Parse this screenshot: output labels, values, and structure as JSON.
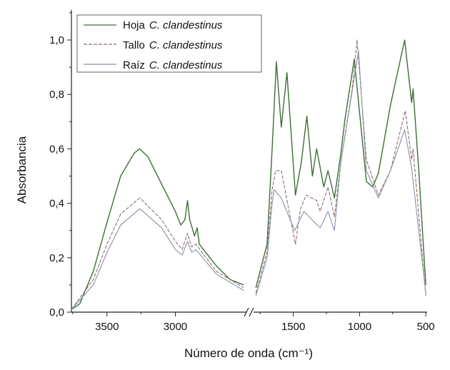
{
  "chart_data": {
    "type": "line",
    "title": "",
    "xlabel": "Número de onda (cm⁻¹)",
    "ylabel": "Absorbancia",
    "ylim": [
      0,
      1.1
    ],
    "broken_axis": true,
    "segments": [
      {
        "xlim": [
          3760,
          2480
        ],
        "ticks": [
          3500,
          3000
        ],
        "tick_labels": [
          "3500",
          "3000"
        ]
      },
      {
        "xlim": [
          1800,
          490
        ],
        "ticks": [
          1500,
          1000,
          500
        ],
        "tick_labels": [
          "1500",
          "1000",
          "500"
        ]
      }
    ],
    "yticks": [
      0,
      0.2,
      0.4,
      0.6,
      0.8,
      1.0
    ],
    "ytick_labels": [
      "0,0",
      "0,2",
      "0,4",
      "0,6",
      "0,8",
      "1,0"
    ],
    "legend": {
      "placement": "top-left"
    },
    "series": [
      {
        "name": "Hoja",
        "name_italic": "C. clandestinus",
        "color": "#3f6e37",
        "dashed": false,
        "segments": [
          [
            [
              3760,
              0.01
            ],
            [
              3700,
              0.03
            ],
            [
              3600,
              0.15
            ],
            [
              3500,
              0.33
            ],
            [
              3400,
              0.5
            ],
            [
              3300,
              0.585
            ],
            [
              3260,
              0.6
            ],
            [
              3200,
              0.57
            ],
            [
              3100,
              0.47
            ],
            [
              3000,
              0.37
            ],
            [
              2960,
              0.32
            ],
            [
              2930,
              0.34
            ],
            [
              2911,
              0.41
            ],
            [
              2895,
              0.34
            ],
            [
              2860,
              0.28
            ],
            [
              2840,
              0.31
            ],
            [
              2825,
              0.25
            ],
            [
              2700,
              0.17
            ],
            [
              2600,
              0.12
            ],
            [
              2500,
              0.1
            ]
          ],
          [
            [
              1783,
              0.09
            ],
            [
              1698,
              0.25
            ],
            [
              1660,
              0.6
            ],
            [
              1628,
              0.92
            ],
            [
              1591,
              0.68
            ],
            [
              1548,
              0.88
            ],
            [
              1484,
              0.43
            ],
            [
              1440,
              0.55
            ],
            [
              1398,
              0.72
            ],
            [
              1356,
              0.5
            ],
            [
              1324,
              0.6
            ],
            [
              1270,
              0.46
            ],
            [
              1238,
              0.52
            ],
            [
              1190,
              0.42
            ],
            [
              1142,
              0.58
            ],
            [
              1110,
              0.71
            ],
            [
              1040,
              0.93
            ],
            [
              949,
              0.48
            ],
            [
              901,
              0.46
            ],
            [
              858,
              0.51
            ],
            [
              767,
              0.76
            ],
            [
              660,
              1.0
            ],
            [
              607,
              0.77
            ],
            [
              596,
              0.82
            ],
            [
              553,
              0.52
            ],
            [
              500,
              0.1
            ]
          ]
        ]
      },
      {
        "name": "Tallo",
        "name_italic": "C. clandestinus",
        "color": "#8d6f70",
        "dashed": true,
        "segments": [
          [
            [
              3760,
              0.01
            ],
            [
              3600,
              0.12
            ],
            [
              3500,
              0.25
            ],
            [
              3400,
              0.36
            ],
            [
              3260,
              0.42
            ],
            [
              3100,
              0.34
            ],
            [
              3000,
              0.26
            ],
            [
              2950,
              0.23
            ],
            [
              2911,
              0.29
            ],
            [
              2880,
              0.24
            ],
            [
              2850,
              0.25
            ],
            [
              2700,
              0.15
            ],
            [
              2500,
              0.09
            ]
          ],
          [
            [
              1783,
              0.07
            ],
            [
              1698,
              0.22
            ],
            [
              1660,
              0.45
            ],
            [
              1634,
              0.52
            ],
            [
              1591,
              0.52
            ],
            [
              1484,
              0.25
            ],
            [
              1446,
              0.38
            ],
            [
              1403,
              0.43
            ],
            [
              1324,
              0.41
            ],
            [
              1297,
              0.37
            ],
            [
              1238,
              0.46
            ],
            [
              1190,
              0.35
            ],
            [
              1142,
              0.55
            ],
            [
              1056,
              0.82
            ],
            [
              1019,
              1.0
            ],
            [
              949,
              0.56
            ],
            [
              858,
              0.43
            ],
            [
              767,
              0.52
            ],
            [
              655,
              0.74
            ],
            [
              607,
              0.56
            ],
            [
              596,
              0.6
            ],
            [
              500,
              0.06
            ]
          ]
        ]
      },
      {
        "name": "Raíz",
        "name_italic": "C. clandestinus",
        "color": "#8a90a6",
        "dashed": false,
        "segments": [
          [
            [
              3760,
              0.01
            ],
            [
              3600,
              0.1
            ],
            [
              3500,
              0.22
            ],
            [
              3400,
              0.32
            ],
            [
              3260,
              0.38
            ],
            [
              3100,
              0.31
            ],
            [
              3000,
              0.23
            ],
            [
              2950,
              0.21
            ],
            [
              2911,
              0.26
            ],
            [
              2880,
              0.22
            ],
            [
              2850,
              0.23
            ],
            [
              2700,
              0.14
            ],
            [
              2500,
              0.08
            ]
          ],
          [
            [
              1783,
              0.06
            ],
            [
              1698,
              0.2
            ],
            [
              1660,
              0.4
            ],
            [
              1644,
              0.45
            ],
            [
              1591,
              0.42
            ],
            [
              1490,
              0.3
            ],
            [
              1420,
              0.37
            ],
            [
              1340,
              0.33
            ],
            [
              1297,
              0.31
            ],
            [
              1238,
              0.37
            ],
            [
              1190,
              0.3
            ],
            [
              1142,
              0.55
            ],
            [
              1040,
              0.86
            ],
            [
              1008,
              0.96
            ],
            [
              949,
              0.52
            ],
            [
              858,
              0.42
            ],
            [
              767,
              0.52
            ],
            [
              660,
              0.67
            ],
            [
              607,
              0.53
            ],
            [
              500,
              0.07
            ]
          ]
        ]
      }
    ]
  }
}
